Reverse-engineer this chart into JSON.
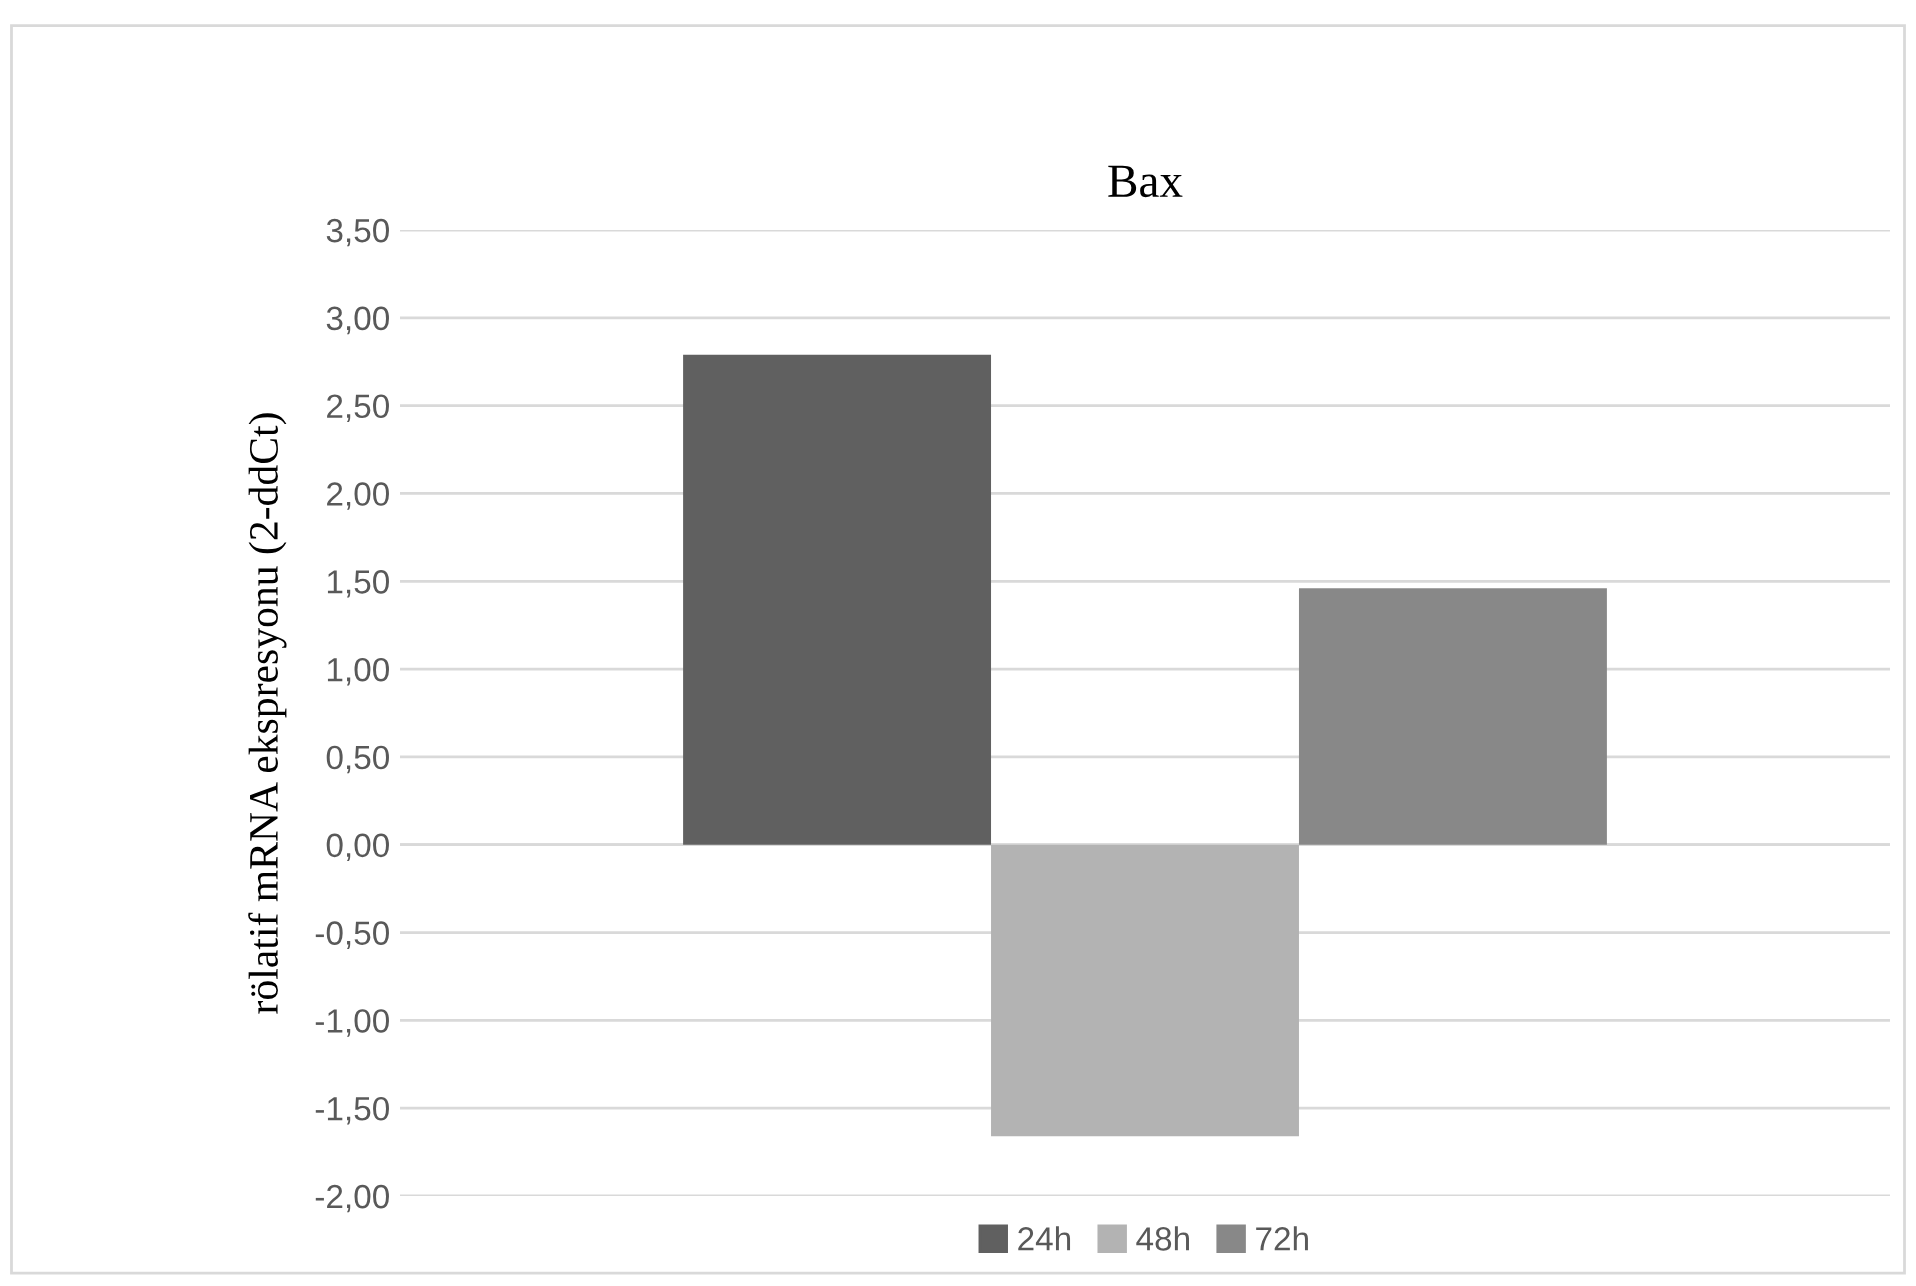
{
  "chart_data": {
    "type": "bar",
    "title": "Bax",
    "ylabel": "rölatif mRNA ekspresyonu (2-ddCt)",
    "categories": [
      null
    ],
    "series": [
      {
        "name": "24h",
        "color": "#606060",
        "values": [
          2.79
        ]
      },
      {
        "name": "48h",
        "color": "#b3b3b3",
        "values": [
          -1.66
        ]
      },
      {
        "name": "72h",
        "color": "#888888",
        "values": [
          1.46
        ]
      }
    ],
    "ylim": [
      -2.0,
      3.5
    ],
    "yticks": [
      {
        "value": -2.0,
        "label": "-2,00"
      },
      {
        "value": -1.5,
        "label": "-1,50"
      },
      {
        "value": -1.0,
        "label": "-1,00"
      },
      {
        "value": -0.5,
        "label": "-0,50"
      },
      {
        "value": 0.0,
        "label": "0,00"
      },
      {
        "value": 0.5,
        "label": "0,50"
      },
      {
        "value": 1.0,
        "label": "1,00"
      },
      {
        "value": 1.5,
        "label": "1,50"
      },
      {
        "value": 2.0,
        "label": "2,00"
      },
      {
        "value": 2.5,
        "label": "2,50"
      },
      {
        "value": 3.0,
        "label": "3,00"
      },
      {
        "value": 3.5,
        "label": "3,50"
      }
    ],
    "grid": "y",
    "legend": "bottom"
  }
}
